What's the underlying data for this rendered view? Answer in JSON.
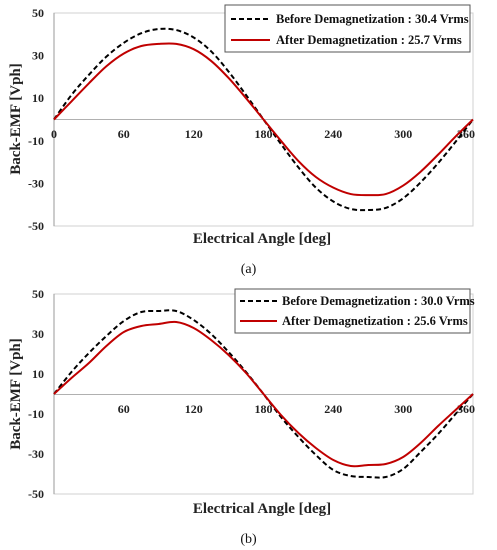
{
  "colors": {
    "before": "#000000",
    "after": "#c00000",
    "zero_line": "#b0b0b0",
    "frame": "#d0d0d0"
  },
  "chart_data": [
    {
      "type": "line",
      "panel_label": "(a)",
      "xlabel": "Electrical Angle [deg]",
      "ylabel": "Back-EMF [Vph]",
      "xlim": [
        0,
        360
      ],
      "ylim": [
        -50,
        50
      ],
      "xticks": [
        "0",
        "60",
        "120",
        "180",
        "240",
        "300",
        "360"
      ],
      "yticks": [
        "50",
        "30",
        "10",
        "-10",
        "-30",
        "-50"
      ],
      "legend_position": "top-right",
      "series": [
        {
          "name": "Before Demagnetization : 30.4 Vrms",
          "style": "dashed",
          "x": [
            0,
            15,
            30,
            45,
            60,
            75,
            90,
            105,
            120,
            135,
            150,
            165,
            180,
            195,
            210,
            225,
            240,
            255,
            270,
            285,
            300,
            315,
            330,
            345,
            360
          ],
          "y": [
            0,
            11.5,
            21,
            29.5,
            36,
            40.5,
            42.5,
            42,
            38.5,
            32,
            22.5,
            11.5,
            0,
            -11.5,
            -22.5,
            -32,
            -38.5,
            -42,
            -42.5,
            -41.5,
            -37,
            -29.5,
            -20.5,
            -10.5,
            0
          ]
        },
        {
          "name": "After Demagnetization : 25.7 Vrms",
          "style": "solid",
          "x": [
            0,
            15,
            30,
            45,
            60,
            75,
            90,
            105,
            120,
            135,
            150,
            165,
            180,
            195,
            210,
            225,
            240,
            255,
            270,
            285,
            300,
            315,
            330,
            345,
            360
          ],
          "y": [
            0,
            8.5,
            17,
            25,
            31,
            34.5,
            35.5,
            35.5,
            33,
            27.5,
            19.5,
            10,
            0,
            -10,
            -19.5,
            -27,
            -32,
            -35,
            -35.5,
            -35,
            -31,
            -24.5,
            -16.5,
            -8,
            0
          ]
        }
      ]
    },
    {
      "type": "line",
      "panel_label": "(b)",
      "xlabel": "Electrical Angle [deg]",
      "ylabel": "Back-EMF [Vph]",
      "xlim": [
        0,
        360
      ],
      "ylim": [
        -50,
        50
      ],
      "xticks": [
        "60",
        "120",
        "180",
        "240",
        "300",
        "360"
      ],
      "yticks": [
        "50",
        "30",
        "10",
        "-10",
        "-30",
        "-50"
      ],
      "legend_position": "top-right",
      "series": [
        {
          "name": "Before Demagnetization : 30.0 Vrms",
          "style": "dashed",
          "x": [
            0,
            15,
            30,
            45,
            60,
            75,
            90,
            105,
            120,
            135,
            150,
            165,
            180,
            195,
            210,
            225,
            240,
            255,
            270,
            285,
            300,
            315,
            330,
            345,
            360
          ],
          "y": [
            0,
            11,
            20.5,
            29,
            36.5,
            41,
            41.5,
            41.5,
            37,
            30,
            21,
            11,
            0,
            -11.5,
            -21.5,
            -30.5,
            -38,
            -41,
            -41.5,
            -41.5,
            -37.5,
            -29,
            -20,
            -10,
            0
          ]
        },
        {
          "name": "After Demagnetization : 25.6 Vrms",
          "style": "solid",
          "x": [
            0,
            15,
            30,
            45,
            60,
            75,
            90,
            105,
            120,
            135,
            150,
            165,
            180,
            195,
            210,
            225,
            240,
            255,
            270,
            285,
            300,
            315,
            330,
            345,
            360
          ],
          "y": [
            0,
            8,
            15.5,
            24,
            31,
            34,
            35,
            36,
            33,
            27,
            19.5,
            10.5,
            0,
            -10.5,
            -19.5,
            -27,
            -33,
            -36,
            -35.5,
            -35,
            -31.5,
            -24.5,
            -16,
            -8,
            0
          ]
        }
      ]
    }
  ]
}
